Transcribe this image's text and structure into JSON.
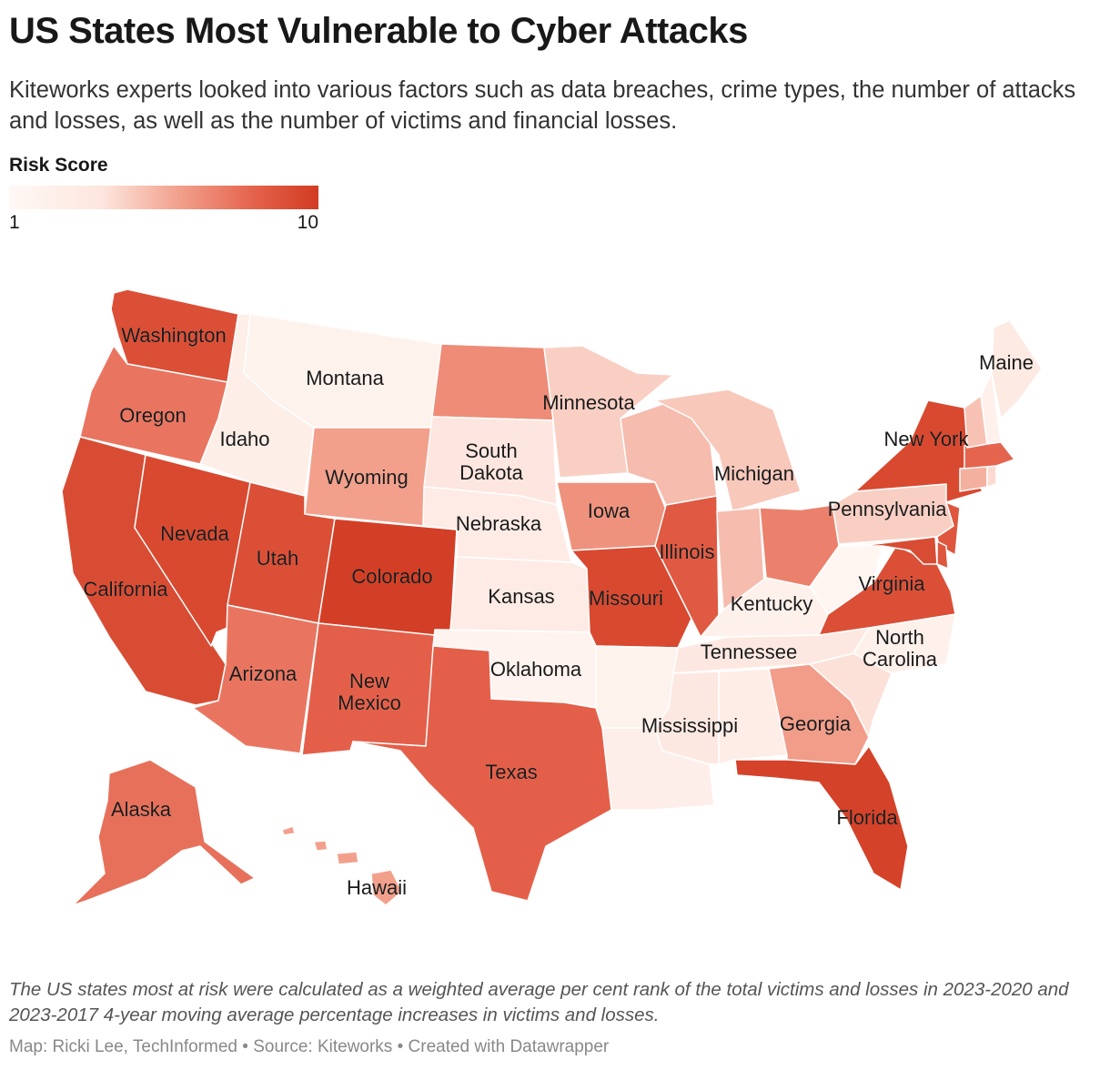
{
  "title": "US States Most Vulnerable to Cyber Attacks",
  "subtitle": "Kiteworks experts looked into various factors such as data breaches, crime types, the number of attacks and losses, as well as the number of victims and financial losses.",
  "legend": {
    "title": "Risk Score",
    "min_label": "1",
    "max_label": "10",
    "min": 1,
    "max": 10,
    "colors": [
      "#fff8f5",
      "#fde6de",
      "#f2a08c",
      "#e4604a",
      "#d13c22"
    ]
  },
  "map": {
    "states": [
      {
        "id": "WA",
        "label": "Washington",
        "score": 8.8
      },
      {
        "id": "OR",
        "label": "Oregon",
        "score": 7.0
      },
      {
        "id": "CA",
        "label": "California",
        "score": 9.0
      },
      {
        "id": "NV",
        "label": "Nevada",
        "score": 9.2
      },
      {
        "id": "ID",
        "label": "Idaho",
        "score": 2.3
      },
      {
        "id": "MT",
        "label": "Montana",
        "score": 1.8
      },
      {
        "id": "WY",
        "label": "Wyoming",
        "score": 5.5
      },
      {
        "id": "UT",
        "label": "Utah",
        "score": 8.8
      },
      {
        "id": "AZ",
        "label": "Arizona",
        "score": 7.0
      },
      {
        "id": "CO",
        "label": "Colorado",
        "score": 9.8
      },
      {
        "id": "NM",
        "label": "New Mexico",
        "score": 7.8
      },
      {
        "id": "ND",
        "label": "",
        "score": 6.2
      },
      {
        "id": "SD",
        "label": "South Dakota",
        "score": 3.2
      },
      {
        "id": "NE",
        "label": "Nebraska",
        "score": 2.6
      },
      {
        "id": "KS",
        "label": "Kansas",
        "score": 2.6
      },
      {
        "id": "OK",
        "label": "Oklahoma",
        "score": 1.6
      },
      {
        "id": "TX",
        "label": "Texas",
        "score": 7.8
      },
      {
        "id": "MN",
        "label": "Minnesota",
        "score": 4.0
      },
      {
        "id": "IA",
        "label": "Iowa",
        "score": 6.0
      },
      {
        "id": "MO",
        "label": "Missouri",
        "score": 9.2
      },
      {
        "id": "AR",
        "label": "",
        "score": 1.8
      },
      {
        "id": "LA",
        "label": "",
        "score": 2.2
      },
      {
        "id": "WI",
        "label": "",
        "score": 4.6
      },
      {
        "id": "IL",
        "label": "Illinois",
        "score": 8.2
      },
      {
        "id": "MI",
        "label": "Michigan",
        "score": 4.2
      },
      {
        "id": "IN",
        "label": "",
        "score": 4.6
      },
      {
        "id": "OH",
        "label": "",
        "score": 6.6
      },
      {
        "id": "KY",
        "label": "Kentucky",
        "score": 2.0
      },
      {
        "id": "TN",
        "label": "Tennessee",
        "score": 3.0
      },
      {
        "id": "MS",
        "label": "Mississippi",
        "score": 3.0
      },
      {
        "id": "AL",
        "label": "",
        "score": 2.4
      },
      {
        "id": "GA",
        "label": "Georgia",
        "score": 5.6
      },
      {
        "id": "FL",
        "label": "Florida",
        "score": 9.6
      },
      {
        "id": "SC",
        "label": "",
        "score": 3.4
      },
      {
        "id": "NC",
        "label": "North Carolina",
        "score": 2.0
      },
      {
        "id": "VA",
        "label": "Virginia",
        "score": 8.8
      },
      {
        "id": "WV",
        "label": "",
        "score": 1.3
      },
      {
        "id": "PA",
        "label": "Pennsylvania",
        "score": 4.0
      },
      {
        "id": "NY",
        "label": "New York",
        "score": 9.2
      },
      {
        "id": "ME",
        "label": "Maine",
        "score": 2.8
      },
      {
        "id": "AK",
        "label": "Alaska",
        "score": 7.2
      },
      {
        "id": "HI",
        "label": "Hawaii",
        "score": 5.5
      },
      {
        "id": "NJ",
        "label": "",
        "score": 8.4
      },
      {
        "id": "MD",
        "label": "",
        "score": 9.0
      },
      {
        "id": "DE",
        "label": "",
        "score": 8.4
      },
      {
        "id": "CT",
        "label": "",
        "score": 5.0
      },
      {
        "id": "MA",
        "label": "",
        "score": 7.6
      },
      {
        "id": "VT",
        "label": "",
        "score": 4.4
      },
      {
        "id": "NH",
        "label": "",
        "score": 2.0
      },
      {
        "id": "RI",
        "label": "",
        "score": 3.6
      }
    ]
  },
  "note": "The US states most at risk were calculated as a weighted average per cent rank of the total victims and losses in 2023-2020 and 2023-2017 4-year moving average percentage increases in victims and losses.",
  "credits": "Map: Ricki Lee, TechInformed • Source: Kiteworks • Created with Datawrapper"
}
